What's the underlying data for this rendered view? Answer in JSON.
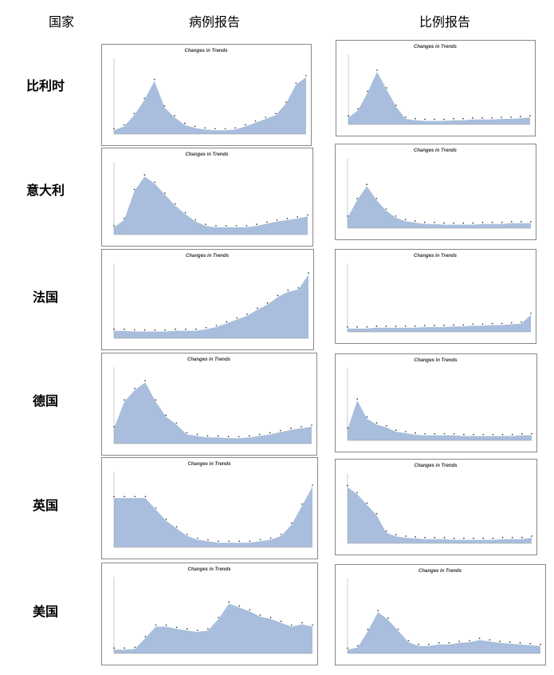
{
  "header": {
    "country": "国家",
    "cases": "病例报告",
    "ratio": "比例报告"
  },
  "rows": [
    {
      "country": "比利时",
      "cases": {
        "type": "area",
        "title": "Changes in Trends",
        "ylim": [
          0,
          100
        ],
        "values": [
          5,
          10,
          25,
          45,
          70,
          35,
          22,
          12,
          8,
          6,
          5,
          5,
          6,
          10,
          15,
          20,
          25,
          40,
          65,
          75
        ]
      },
      "ratio": {
        "type": "area",
        "title": "Changes in Trends",
        "ylim": [
          0,
          100
        ],
        "values": [
          10,
          20,
          45,
          75,
          50,
          25,
          8,
          6,
          5,
          5,
          5,
          6,
          6,
          7,
          7,
          7,
          8,
          8,
          9,
          10
        ]
      }
    },
    {
      "country": "意大利",
      "cases": {
        "type": "area",
        "title": "Changes in Trends",
        "ylim": [
          0,
          100
        ],
        "values": [
          10,
          20,
          60,
          80,
          70,
          55,
          40,
          28,
          18,
          12,
          10,
          10,
          10,
          10,
          12,
          15,
          18,
          20,
          22,
          25
        ]
      },
      "ratio": {
        "type": "area",
        "title": "Changes in Trends",
        "ylim": [
          0,
          100
        ],
        "values": [
          15,
          40,
          60,
          40,
          25,
          15,
          10,
          8,
          6,
          6,
          5,
          5,
          5,
          5,
          6,
          6,
          6,
          7,
          7,
          7
        ]
      }
    },
    {
      "country": "法国",
      "cases": {
        "type": "area",
        "title": "Changes in Trends",
        "ylim": [
          0,
          100
        ],
        "values": [
          10,
          10,
          9,
          9,
          9,
          9,
          10,
          10,
          10,
          12,
          15,
          20,
          25,
          30,
          38,
          45,
          55,
          62,
          65,
          85
        ]
      },
      "ratio": {
        "type": "area",
        "title": "Changes in Trends",
        "ylim": [
          0,
          100
        ],
        "values": [
          5,
          5,
          5,
          6,
          6,
          6,
          6,
          6,
          7,
          7,
          7,
          8,
          8,
          9,
          9,
          10,
          10,
          11,
          12,
          25
        ]
      }
    },
    {
      "country": "德国",
      "cases": {
        "type": "area",
        "title": "Changes in Trends",
        "ylim": [
          0,
          100
        ],
        "values": [
          20,
          55,
          70,
          80,
          55,
          35,
          25,
          12,
          10,
          8,
          8,
          7,
          7,
          8,
          10,
          12,
          15,
          18,
          20,
          22
        ]
      },
      "ratio": {
        "type": "area",
        "title": "Changes in Trends",
        "ylim": [
          0,
          100
        ],
        "values": [
          15,
          55,
          30,
          22,
          18,
          12,
          10,
          8,
          7,
          7,
          7,
          7,
          6,
          6,
          6,
          6,
          6,
          6,
          7,
          7
        ]
      }
    },
    {
      "country": "英国",
      "cases": {
        "type": "area",
        "title": "Changes in Trends",
        "ylim": [
          0,
          100
        ],
        "values": [
          65,
          65,
          65,
          65,
          50,
          35,
          25,
          15,
          10,
          8,
          6,
          6,
          6,
          6,
          8,
          10,
          15,
          30,
          55,
          80
        ]
      },
      "ratio": {
        "type": "area",
        "title": "Changes in Trends",
        "ylim": [
          0,
          100
        ],
        "values": [
          80,
          70,
          55,
          40,
          15,
          10,
          8,
          7,
          6,
          6,
          6,
          5,
          5,
          5,
          5,
          5,
          6,
          6,
          6,
          8
        ]
      }
    },
    {
      "country": "美国",
      "cases": {
        "type": "area",
        "title": "Changes in Trends",
        "ylim": [
          0,
          100
        ],
        "values": [
          5,
          5,
          6,
          20,
          35,
          35,
          32,
          30,
          28,
          30,
          45,
          65,
          60,
          55,
          48,
          45,
          40,
          35,
          38,
          35
        ]
      },
      "ratio": {
        "type": "area",
        "title": "Changes in Trends",
        "ylim": [
          0,
          100
        ],
        "values": [
          5,
          8,
          30,
          55,
          45,
          30,
          15,
          10,
          10,
          12,
          12,
          14,
          15,
          18,
          16,
          14,
          13,
          12,
          11,
          10
        ]
      }
    }
  ]
}
